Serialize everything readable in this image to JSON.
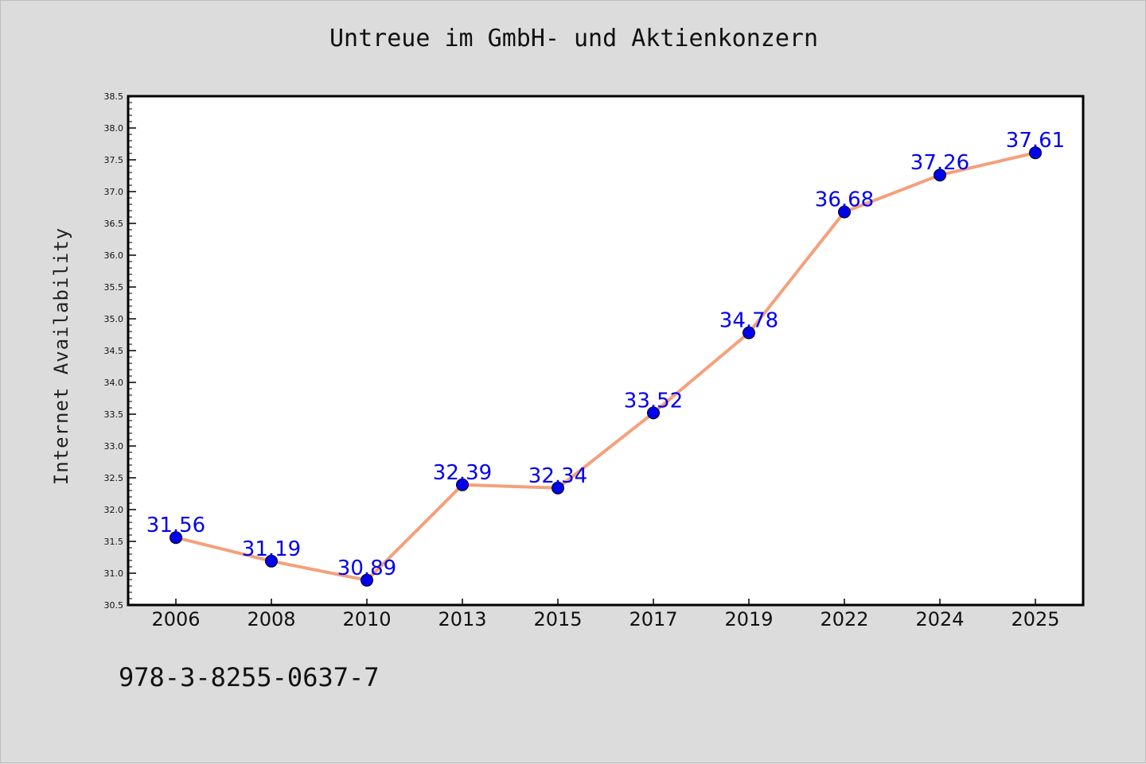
{
  "chart_data": {
    "type": "line",
    "title": "Untreue im GmbH- und Aktienkonzern",
    "xlabel": "",
    "ylabel": "Internet Availability",
    "categories": [
      "2006",
      "2008",
      "2010",
      "2013",
      "2015",
      "2017",
      "2019",
      "2022",
      "2024",
      "2025"
    ],
    "series": [
      {
        "values": [
          31.56,
          31.19,
          30.89,
          32.39,
          32.34,
          33.52,
          34.78,
          36.68,
          37.26,
          37.61
        ],
        "labels": [
          "31.56",
          "31.19",
          "30.89",
          "32.39",
          "32.34",
          "33.52",
          "34.78",
          "36.68",
          "37.26",
          "37.61"
        ]
      }
    ],
    "ylim": [
      30.5,
      38.5
    ],
    "yticks": [
      "30.5",
      "31.0",
      "31.5",
      "32.0",
      "32.5",
      "33.0",
      "33.5",
      "34.0",
      "34.5",
      "35.0",
      "35.5",
      "36.0",
      "36.5",
      "37.0",
      "37.5",
      "38.0",
      "38.5"
    ],
    "grid": false,
    "colors": {
      "line": "#f4a07c",
      "marker": "#0000ee",
      "label": "#0000ee",
      "background": "#dcdcdc",
      "plot_bg": "#ffffff"
    }
  },
  "footnote": "978-3-8255-0637-7"
}
